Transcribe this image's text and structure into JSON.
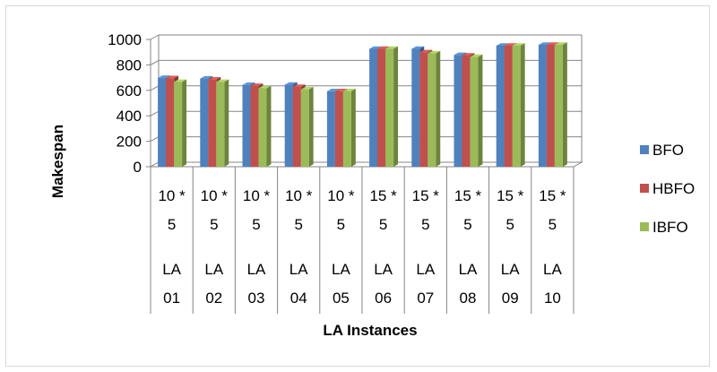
{
  "chart_data": {
    "type": "bar",
    "title": "",
    "xlabel": "LA Instances",
    "ylabel": "Makespan",
    "ylim": [
      0,
      1000
    ],
    "yticks": [
      "0",
      "200",
      "400",
      "600",
      "800",
      "1000"
    ],
    "categories": [
      {
        "size": [
          "10 *",
          "5"
        ],
        "name": [
          "LA",
          "01"
        ]
      },
      {
        "size": [
          "10 *",
          "5"
        ],
        "name": [
          "LA",
          "02"
        ]
      },
      {
        "size": [
          "10 *",
          "5"
        ],
        "name": [
          "LA",
          "03"
        ]
      },
      {
        "size": [
          "10 *",
          "5"
        ],
        "name": [
          "LA",
          "04"
        ]
      },
      {
        "size": [
          "10 *",
          "5"
        ],
        "name": [
          "LA",
          "05"
        ]
      },
      {
        "size": [
          "15 *",
          "5"
        ],
        "name": [
          "LA",
          "06"
        ]
      },
      {
        "size": [
          "15 *",
          "5"
        ],
        "name": [
          "LA",
          "07"
        ]
      },
      {
        "size": [
          "15 *",
          "5"
        ],
        "name": [
          "LA",
          "08"
        ]
      },
      {
        "size": [
          "15 *",
          "5"
        ],
        "name": [
          "LA",
          "09"
        ]
      },
      {
        "size": [
          "15 *",
          "5"
        ],
        "name": [
          "LA",
          "10"
        ]
      }
    ],
    "series": [
      {
        "name": "BFO",
        "color": "#4f81bd",
        "values": [
          698,
          693,
          643,
          644,
          593,
          926,
          926,
          878,
          951,
          958
        ]
      },
      {
        "name": "HBFO",
        "color": "#c0504d",
        "values": [
          695,
          685,
          635,
          627,
          593,
          926,
          899,
          873,
          951,
          958
        ]
      },
      {
        "name": "IBFO",
        "color": "#9bbb59",
        "values": [
          666,
          666,
          617,
          607,
          593,
          926,
          890,
          863,
          951,
          958
        ]
      }
    ],
    "grid": true,
    "legend": "right"
  }
}
